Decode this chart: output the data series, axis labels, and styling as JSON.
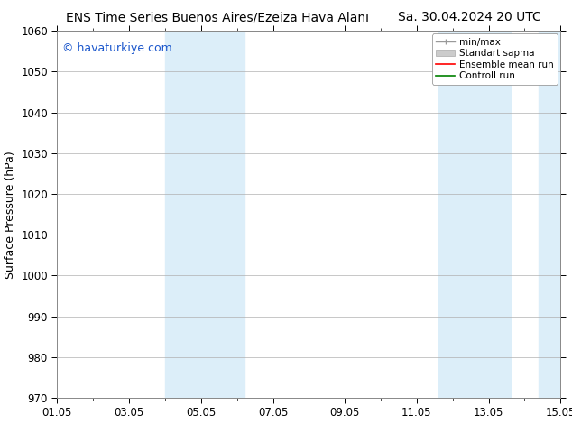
{
  "title_left": "ENS Time Series Buenos Aires/Ezeiza Hava Alanı",
  "title_right": "Sa. 30.04.2024 20 UTC",
  "ylabel": "Surface Pressure (hPa)",
  "watermark": "© havaturkiye.com",
  "ylim": [
    970,
    1060
  ],
  "yticks": [
    970,
    980,
    990,
    1000,
    1010,
    1020,
    1030,
    1040,
    1050,
    1060
  ],
  "xlim_start": 0,
  "xlim_end": 14,
  "xtick_labels": [
    "01.05",
    "03.05",
    "05.05",
    "07.05",
    "09.05",
    "11.05",
    "13.05",
    "15.05"
  ],
  "xtick_positions": [
    0,
    2,
    4,
    6,
    8,
    10,
    12,
    14
  ],
  "shaded_bands": [
    {
      "x_start": 3.0,
      "x_end": 5.2
    },
    {
      "x_start": 10.6,
      "x_end": 12.6
    },
    {
      "x_start": 13.4,
      "x_end": 14.0
    }
  ],
  "shaded_color": "#dceef9",
  "background_color": "#ffffff",
  "grid_color": "#b0b0b0",
  "legend_entries": [
    {
      "label": "min/max"
    },
    {
      "label": "Standart sapma"
    },
    {
      "label": "Ensemble mean run"
    },
    {
      "label": "Controll run"
    }
  ],
  "title_fontsize": 10,
  "tick_fontsize": 8.5,
  "ylabel_fontsize": 9,
  "watermark_color": "#1a56cc",
  "watermark_fontsize": 9
}
